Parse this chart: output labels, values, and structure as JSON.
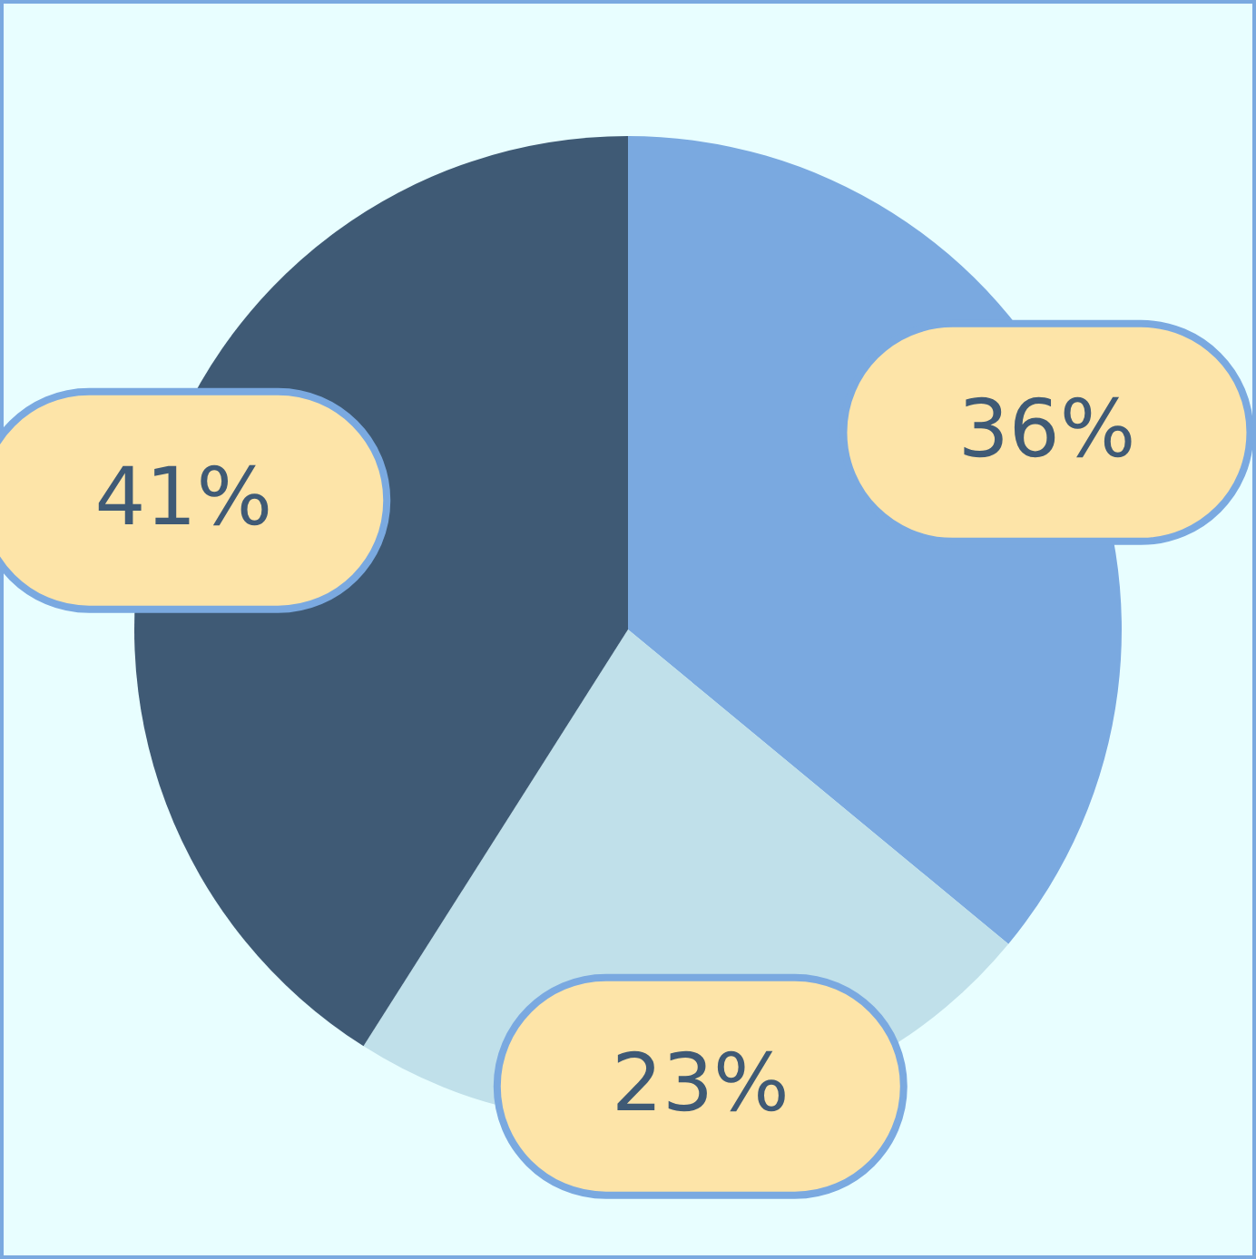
{
  "chart_data": {
    "type": "pie",
    "categories": [
      null,
      null,
      null
    ],
    "values": [
      36,
      23,
      41
    ],
    "colors": [
      "#7aa9e0",
      "#c0e0ea",
      "#3f5a75"
    ],
    "value_labels": [
      "36%",
      "23%",
      "41%"
    ]
  }
}
